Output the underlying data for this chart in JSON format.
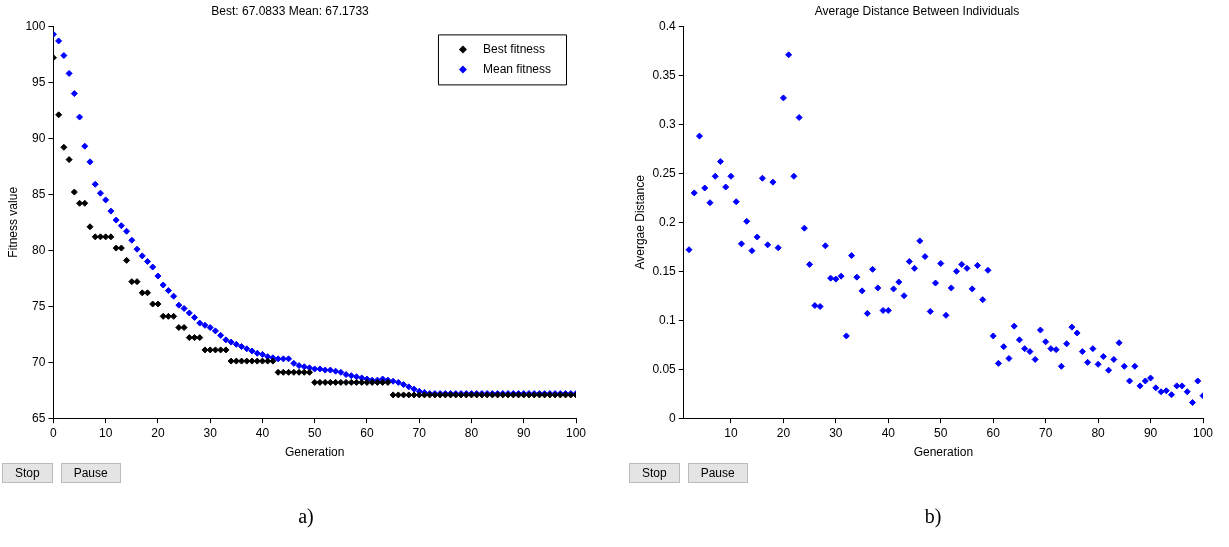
{
  "chart_data": [
    {
      "type": "scatter",
      "title": "Best: 67.0833 Mean: 67.1733",
      "xlabel": "Generation",
      "ylabel": "Fitness value",
      "x": [
        0,
        1,
        2,
        3,
        4,
        5,
        6,
        7,
        8,
        9,
        10,
        11,
        12,
        13,
        14,
        15,
        16,
        17,
        18,
        19,
        20,
        21,
        22,
        23,
        24,
        25,
        26,
        27,
        28,
        29,
        30,
        31,
        32,
        33,
        34,
        35,
        36,
        37,
        38,
        39,
        40,
        41,
        42,
        43,
        44,
        45,
        46,
        47,
        48,
        49,
        50,
        51,
        52,
        53,
        54,
        55,
        56,
        57,
        58,
        59,
        60,
        61,
        62,
        63,
        64,
        65,
        66,
        67,
        68,
        69,
        70,
        71,
        72,
        73,
        74,
        75,
        76,
        77,
        78,
        79,
        80,
        81,
        82,
        83,
        84,
        85,
        86,
        87,
        88,
        89,
        90,
        91,
        92,
        93,
        94,
        95,
        96,
        97,
        98,
        99,
        100
      ],
      "series": [
        {
          "name": "Best fitness",
          "color": "#000000",
          "values": [
            97.2,
            92.1,
            89.2,
            88.1,
            85.2,
            84.2,
            84.2,
            82.1,
            81.2,
            81.2,
            81.2,
            81.2,
            80.2,
            80.2,
            79.1,
            77.2,
            77.2,
            76.2,
            76.2,
            75.2,
            75.2,
            74.1,
            74.1,
            74.1,
            73.1,
            73.1,
            72.2,
            72.2,
            72.2,
            71.1,
            71.1,
            71.1,
            71.1,
            71.1,
            70.1,
            70.1,
            70.1,
            70.1,
            70.1,
            70.1,
            70.1,
            70.1,
            70.1,
            69.1,
            69.1,
            69.1,
            69.1,
            69.1,
            69.1,
            69.1,
            68.2,
            68.2,
            68.2,
            68.2,
            68.2,
            68.2,
            68.2,
            68.2,
            68.2,
            68.2,
            68.2,
            68.2,
            68.2,
            68.2,
            68.2,
            67.08,
            67.08,
            67.08,
            67.08,
            67.08,
            67.08,
            67.08,
            67.08,
            67.08,
            67.08,
            67.08,
            67.08,
            67.08,
            67.08,
            67.08,
            67.08,
            67.08,
            67.08,
            67.08,
            67.08,
            67.08,
            67.08,
            67.08,
            67.08,
            67.08,
            67.08,
            67.08,
            67.08,
            67.08,
            67.08,
            67.08,
            67.08,
            67.08,
            67.08,
            67.08,
            67.08
          ]
        },
        {
          "name": "Mean fitness",
          "color": "#0000ff",
          "values": [
            99.3,
            98.7,
            97.4,
            95.8,
            94.0,
            91.9,
            89.3,
            87.9,
            85.9,
            85.1,
            84.5,
            83.5,
            82.7,
            82.2,
            81.7,
            80.9,
            80.1,
            79.5,
            79.0,
            78.5,
            77.7,
            76.9,
            76.4,
            75.9,
            75.1,
            74.8,
            74.4,
            74.0,
            73.5,
            73.3,
            73.1,
            72.8,
            72.4,
            72.0,
            71.8,
            71.6,
            71.4,
            71.2,
            71.0,
            70.8,
            70.7,
            70.5,
            70.4,
            70.3,
            70.3,
            70.3,
            69.9,
            69.7,
            69.6,
            69.5,
            69.4,
            69.4,
            69.3,
            69.3,
            69.2,
            69.1,
            68.9,
            68.8,
            68.7,
            68.6,
            68.5,
            68.4,
            68.4,
            68.5,
            68.4,
            68.3,
            68.2,
            68.0,
            67.8,
            67.6,
            67.4,
            67.3,
            67.2,
            67.2,
            67.2,
            67.2,
            67.2,
            67.2,
            67.2,
            67.2,
            67.2,
            67.2,
            67.2,
            67.2,
            67.2,
            67.2,
            67.2,
            67.2,
            67.2,
            67.2,
            67.2,
            67.2,
            67.2,
            67.2,
            67.2,
            67.2,
            67.2,
            67.2,
            67.2,
            67.2,
            67.2
          ]
        }
      ],
      "xlim": [
        0,
        100
      ],
      "xticks": [
        0,
        10,
        20,
        30,
        40,
        50,
        60,
        70,
        80,
        90,
        100
      ],
      "ylim": [
        65,
        100
      ],
      "yticks": [
        65,
        70,
        75,
        80,
        85,
        90,
        95,
        100
      ],
      "marker": "diamond",
      "legend": "top right",
      "grid": false,
      "annotations": [
        "Stop",
        "Pause",
        "a)"
      ]
    },
    {
      "type": "scatter",
      "title": "Average Distance Between Individuals",
      "xlabel": "Generation",
      "ylabel": "Avergae Distance",
      "x": [
        2,
        3,
        4,
        5,
        6,
        7,
        8,
        9,
        10,
        11,
        12,
        13,
        14,
        15,
        16,
        17,
        18,
        19,
        20,
        21,
        22,
        23,
        24,
        25,
        26,
        27,
        28,
        29,
        30,
        31,
        32,
        33,
        34,
        35,
        36,
        37,
        38,
        39,
        40,
        41,
        42,
        43,
        44,
        45,
        46,
        47,
        48,
        49,
        50,
        51,
        52,
        53,
        54,
        55,
        56,
        57,
        58,
        59,
        60,
        61,
        62,
        63,
        64,
        65,
        66,
        67,
        68,
        69,
        70,
        71,
        72,
        73,
        74,
        75,
        76,
        77,
        78,
        79,
        80,
        81,
        82,
        83,
        84,
        85,
        86,
        87,
        88,
        89,
        90,
        91,
        92,
        93,
        94,
        95,
        96,
        97,
        98,
        99,
        100
      ],
      "series": [
        {
          "color": "#0000ff",
          "values": [
            0.172,
            0.23,
            0.288,
            0.235,
            0.22,
            0.247,
            0.262,
            0.236,
            0.247,
            0.221,
            0.178,
            0.201,
            0.171,
            0.185,
            0.245,
            0.177,
            0.241,
            0.174,
            0.327,
            0.371,
            0.247,
            0.307,
            0.194,
            0.157,
            0.115,
            0.114,
            0.176,
            0.143,
            0.142,
            0.145,
            0.084,
            0.166,
            0.144,
            0.13,
            0.107,
            0.152,
            0.133,
            0.11,
            0.11,
            0.132,
            0.139,
            0.125,
            0.16,
            0.153,
            0.181,
            0.165,
            0.109,
            0.138,
            0.158,
            0.105,
            0.133,
            0.15,
            0.157,
            0.153,
            0.132,
            0.156,
            0.121,
            0.151,
            0.084,
            0.056,
            0.073,
            0.061,
            0.094,
            0.08,
            0.071,
            0.068,
            0.06,
            0.09,
            0.078,
            0.071,
            0.07,
            0.053,
            0.076,
            0.093,
            0.087,
            0.068,
            0.057,
            0.071,
            0.055,
            0.063,
            0.049,
            0.06,
            0.077,
            0.053,
            0.038,
            0.053,
            0.033,
            0.038,
            0.041,
            0.031,
            0.027,
            0.028,
            0.024,
            0.033,
            0.033,
            0.027,
            0.016,
            0.038,
            0.023
          ]
        }
      ],
      "xlim": [
        1,
        100
      ],
      "xticks": [
        10,
        20,
        30,
        40,
        50,
        60,
        70,
        80,
        90,
        100
      ],
      "ylim": [
        0,
        0.4
      ],
      "yticks": [
        0,
        0.05,
        0.1,
        0.15,
        0.2,
        0.25,
        0.3,
        0.35,
        0.4
      ],
      "marker": "diamond",
      "grid": false,
      "annotations": [
        "Stop",
        "Pause",
        "b)"
      ]
    }
  ]
}
